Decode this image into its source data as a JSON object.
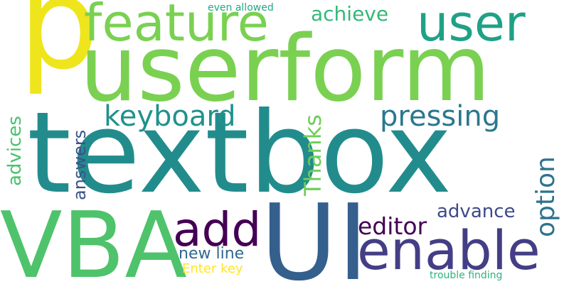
{
  "wordcloud": {
    "words": [
      {
        "text": "p",
        "color": "#efe51c",
        "orientation": "horizontal"
      },
      {
        "text": "userform",
        "color": "#7ad151",
        "orientation": "horizontal"
      },
      {
        "text": "textbox",
        "color": "#228c8d",
        "orientation": "horizontal"
      },
      {
        "text": "VBA",
        "color": "#4ec36b",
        "orientation": "horizontal"
      },
      {
        "text": "UI",
        "color": "#355f8d",
        "orientation": "horizontal"
      },
      {
        "text": "feature",
        "color": "#7ad151",
        "orientation": "horizontal"
      },
      {
        "text": "user",
        "color": "#1fa187",
        "orientation": "horizontal"
      },
      {
        "text": "enable",
        "color": "#433e85",
        "orientation": "horizontal"
      },
      {
        "text": "add",
        "color": "#440154",
        "orientation": "horizontal"
      },
      {
        "text": "keyboard",
        "color": "#21918c",
        "orientation": "horizontal"
      },
      {
        "text": "pressing",
        "color": "#2a788e",
        "orientation": "horizontal"
      },
      {
        "text": "achieve",
        "color": "#35b779",
        "orientation": "horizontal"
      },
      {
        "text": "editor",
        "color": "#440154",
        "orientation": "horizontal"
      },
      {
        "text": "advance",
        "color": "#3e4989",
        "orientation": "horizontal"
      },
      {
        "text": "new line",
        "color": "#31688e",
        "orientation": "horizontal"
      },
      {
        "text": "Enter key",
        "color": "#fde725",
        "orientation": "horizontal"
      },
      {
        "text": "even allowed",
        "color": "#22a884",
        "orientation": "horizontal"
      },
      {
        "text": "trouble finding",
        "color": "#2eb37c",
        "orientation": "horizontal"
      },
      {
        "text": "advices",
        "color": "#4ac16d",
        "orientation": "vertical"
      },
      {
        "text": "answers",
        "color": "#3b528b",
        "orientation": "vertical"
      },
      {
        "text": "Thanks",
        "color": "#6ece58",
        "orientation": "vertical"
      },
      {
        "text": "option",
        "color": "#2c728e",
        "orientation": "vertical"
      }
    ]
  }
}
